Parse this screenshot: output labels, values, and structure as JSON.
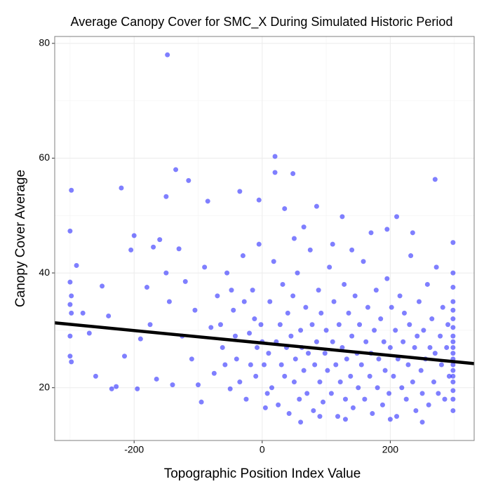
{
  "chart_data": {
    "type": "scatter",
    "title": "Average Canopy Cover for SMC_X During Simulated Historic Period",
    "x_label": "Topographic Position Index Value",
    "y_label": "Canopy Cover Average",
    "xlim": [
      -324,
      331
    ],
    "ylim": [
      10.8,
      81.2
    ],
    "xticks": [
      -200,
      0,
      200
    ],
    "yticks": [
      20,
      40,
      60,
      80
    ],
    "minor_xticks": [
      -300,
      -100,
      100,
      300
    ],
    "minor_yticks": [
      30,
      50,
      70
    ],
    "grid": true,
    "series": [
      {
        "color": "#0000ff",
        "x": [
          -148,
          20,
          -298,
          -220,
          -135,
          20,
          48,
          270,
          -115,
          -150,
          -35,
          -85,
          -5,
          85,
          35,
          -300,
          125,
          210,
          235,
          195,
          298,
          -290,
          -300,
          -298,
          -300,
          -298,
          -300,
          -300,
          -298,
          -280,
          -270,
          -260,
          -250,
          -240,
          -235,
          -228,
          -215,
          -200,
          -205,
          -195,
          -190,
          -180,
          -175,
          -170,
          -165,
          -160,
          -150,
          -145,
          -140,
          -130,
          -125,
          -120,
          -110,
          -105,
          -100,
          -95,
          -90,
          -80,
          -75,
          -70,
          -62,
          -55,
          -50,
          -45,
          -40,
          -30,
          -25,
          -20,
          -15,
          -10,
          -5,
          -2,
          5,
          10,
          12,
          15,
          18,
          22,
          25,
          28,
          30,
          32,
          35,
          38,
          40,
          42,
          45,
          48,
          50,
          52,
          55,
          58,
          60,
          62,
          65,
          68,
          70,
          72,
          75,
          78,
          80,
          82,
          85,
          88,
          90,
          92,
          95,
          98,
          100,
          102,
          105,
          108,
          110,
          112,
          115,
          118,
          120,
          122,
          125,
          128,
          130,
          132,
          135,
          138,
          140,
          142,
          145,
          148,
          150,
          152,
          155,
          158,
          160,
          162,
          165,
          168,
          170,
          172,
          175,
          178,
          180,
          182,
          185,
          188,
          190,
          192,
          195,
          198,
          200,
          202,
          205,
          208,
          210,
          212,
          215,
          218,
          220,
          222,
          225,
          228,
          230,
          232,
          235,
          238,
          240,
          242,
          245,
          248,
          250,
          252,
          255,
          258,
          260,
          262,
          265,
          268,
          270,
          272,
          275,
          278,
          280,
          282,
          285,
          288,
          290,
          292,
          298,
          298,
          298,
          298,
          298,
          298,
          298,
          298,
          298,
          298,
          298,
          298,
          298,
          298,
          298,
          298,
          298,
          298,
          0,
          3,
          8,
          -8,
          -12,
          -18,
          -28,
          -35,
          -42,
          -48,
          -58,
          -65,
          50,
          65,
          110,
          140,
          170,
          90,
          130,
          200,
          60,
          250
        ],
        "y": [
          78,
          60.3,
          54.4,
          54.8,
          58,
          57.5,
          57.3,
          56.3,
          56.1,
          53.3,
          54.2,
          52.5,
          52.7,
          51.6,
          51.2,
          47.3,
          49.8,
          49.8,
          47,
          47.6,
          45.3,
          41.3,
          38.4,
          36,
          34.5,
          33,
          29,
          25.5,
          24.5,
          33,
          29.5,
          22,
          37.7,
          32.5,
          19.8,
          20.2,
          25.5,
          46.5,
          44,
          19.8,
          28.5,
          37.5,
          31,
          44.5,
          21.5,
          45.8,
          40,
          35,
          20.5,
          44.2,
          29,
          38.5,
          25,
          33.5,
          20.5,
          17.5,
          41,
          30.5,
          22.5,
          36,
          27,
          40,
          19.8,
          33.5,
          25,
          43,
          18,
          29.5,
          37,
          22,
          45,
          31,
          16.5,
          26,
          35,
          20,
          42,
          28,
          17,
          31,
          24,
          38,
          22,
          27,
          33,
          15.5,
          29,
          36,
          21,
          25,
          40,
          18,
          30,
          27,
          23,
          34,
          19,
          26,
          44,
          31,
          16,
          24,
          28,
          37,
          21,
          33,
          17.5,
          26,
          30,
          23,
          41,
          19,
          28,
          35,
          24,
          15,
          31,
          21,
          27,
          38,
          18,
          25,
          33,
          22,
          29,
          16.5,
          36,
          26,
          20,
          31,
          24,
          42,
          18,
          28,
          34,
          22,
          26,
          15.5,
          30,
          37,
          20,
          25,
          32,
          17,
          28,
          23,
          39,
          19,
          27,
          34,
          22,
          30,
          15,
          25,
          36,
          20,
          28,
          33,
          18,
          24,
          31,
          43,
          21,
          27,
          16,
          29,
          35,
          23,
          19,
          30,
          25,
          38,
          17,
          27,
          32,
          21,
          26,
          41,
          19,
          29,
          24,
          34,
          18,
          27,
          31,
          22,
          40,
          37.5,
          35,
          33.5,
          32,
          30.5,
          29,
          28,
          27,
          26,
          25,
          24,
          23,
          22,
          21,
          19.5,
          18,
          16,
          28,
          24,
          19,
          27,
          32,
          24,
          35,
          21,
          29,
          37,
          24,
          31,
          46,
          48,
          45,
          44,
          47,
          15,
          14.5,
          14.5,
          14,
          14
        ]
      }
    ],
    "fit_line": {
      "color": "#000000",
      "x": [
        -324,
        331
      ],
      "y": [
        31.3,
        24.2
      ]
    }
  }
}
